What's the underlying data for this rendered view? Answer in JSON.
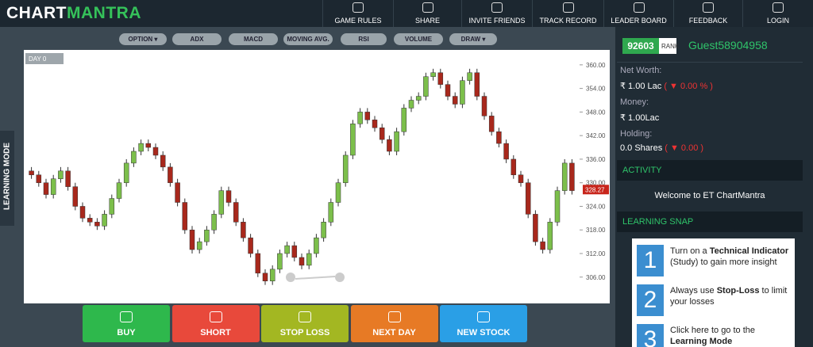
{
  "nav": {
    "logo": [
      "CHART",
      "MANTRA"
    ],
    "items": [
      "GAME RULES",
      "SHARE",
      "INVITE FRIENDS",
      "TRACK RECORD",
      "LEADER BOARD",
      "FEEDBACK",
      "LOGIN"
    ]
  },
  "side_tab": "LEARNING MODE",
  "toolbar": [
    "OPTION",
    "ADX",
    "MACD",
    "MOVING AVG.",
    "RSI",
    "VOLUME",
    "DRAW"
  ],
  "chart": {
    "type": "candlestick",
    "day_label": "DAY 0",
    "last_price": 328.27,
    "up_color": "#7cbf4b",
    "down_color": "#a8281c",
    "ylim": [
      299.3,
      363.8
    ],
    "yticks": [
      {
        "value": 306,
        "label": "306.00"
      },
      {
        "value": 312,
        "label": "312.00"
      },
      {
        "value": 318,
        "label": "318.00"
      },
      {
        "value": 324,
        "label": "324.00"
      },
      {
        "value": 330,
        "label": "330.00"
      },
      {
        "value": 336,
        "label": "336.00"
      },
      {
        "value": 342,
        "label": "342.00"
      },
      {
        "value": 348,
        "label": "348.00"
      },
      {
        "value": 354,
        "label": "354.00"
      },
      {
        "value": 360,
        "label": "360.00"
      }
    ],
    "open": [
      333,
      332,
      330,
      327,
      331,
      333,
      329,
      324,
      321,
      320,
      319,
      322,
      326,
      330,
      335,
      338,
      340,
      339,
      337,
      334,
      330,
      325,
      318,
      313,
      315,
      318,
      322,
      328,
      325,
      320,
      316,
      312,
      307,
      305,
      308,
      312,
      314,
      311,
      309,
      312,
      316,
      320,
      325,
      330,
      337,
      345,
      348,
      346,
      344,
      341,
      338,
      343,
      349,
      351,
      352,
      357,
      358,
      355,
      352,
      350,
      356,
      358,
      352,
      347,
      343,
      340,
      336,
      332,
      330,
      322,
      315,
      313,
      320,
      328,
      335
    ],
    "high": [
      334,
      333,
      331,
      332,
      334,
      334,
      330,
      325,
      322,
      321,
      323,
      327,
      331,
      336,
      339,
      341,
      341,
      340,
      338,
      335,
      331,
      326,
      319,
      316,
      319,
      323,
      329,
      329,
      326,
      321,
      317,
      313,
      308,
      309,
      313,
      315,
      315,
      312,
      313,
      317,
      321,
      326,
      331,
      338,
      346,
      349,
      349,
      347,
      345,
      342,
      344,
      350,
      352,
      353,
      358,
      359,
      359,
      356,
      353,
      357,
      359,
      359,
      353,
      348,
      344,
      341,
      337,
      333,
      331,
      323,
      316,
      321,
      329,
      336,
      336
    ],
    "low": [
      331,
      329,
      326,
      326,
      330,
      328,
      323,
      320,
      319,
      318,
      318,
      321,
      325,
      329,
      334,
      337,
      338,
      336,
      333,
      329,
      324,
      317,
      312,
      312,
      314,
      317,
      321,
      324,
      319,
      315,
      311,
      306,
      304,
      304,
      307,
      311,
      310,
      308,
      308,
      311,
      315,
      319,
      324,
      329,
      336,
      344,
      345,
      343,
      340,
      337,
      337,
      342,
      348,
      350,
      351,
      356,
      354,
      351,
      349,
      349,
      355,
      351,
      346,
      342,
      339,
      335,
      331,
      329,
      321,
      314,
      312,
      312,
      319,
      327,
      327
    ],
    "close": [
      332,
      330,
      327,
      331,
      333,
      329,
      324,
      321,
      320,
      319,
      322,
      326,
      330,
      335,
      338,
      340,
      339,
      337,
      334,
      330,
      325,
      318,
      313,
      315,
      318,
      322,
      328,
      325,
      320,
      316,
      312,
      307,
      305,
      308,
      312,
      314,
      311,
      309,
      312,
      316,
      320,
      325,
      330,
      337,
      345,
      348,
      346,
      344,
      341,
      338,
      343,
      349,
      351,
      352,
      357,
      358,
      355,
      352,
      350,
      356,
      358,
      352,
      347,
      343,
      340,
      336,
      332,
      330,
      322,
      315,
      313,
      320,
      328,
      335,
      328
    ]
  },
  "actions": [
    "BUY",
    "SHORT",
    "STOP LOSS",
    "NEXT DAY",
    "NEW STOCK"
  ],
  "profile": {
    "rank_value": "92603",
    "rank_label": "RANK",
    "username": "Guest58904958",
    "net_worth_label": "Net Worth:",
    "net_worth": "₹ 1.00 Lac",
    "net_worth_change": "( ▼ 0.00 % )",
    "money_label": "Money:",
    "money": "₹ 1.00Lac",
    "holding_label": "Holding:",
    "holding": "0.0 Shares",
    "holding_change": "( ▼ 0.00 )"
  },
  "activity": {
    "title": "ACTIVITY",
    "message": "Welcome to ET ChartMantra"
  },
  "learning_snap": {
    "title": "LEARNING SNAP",
    "items": [
      {
        "number": "1",
        "text": [
          "Turn on a ",
          "Technical Indicator",
          " (Study) to gain more insight"
        ]
      },
      {
        "number": "2",
        "text": [
          "Always use ",
          "Stop-Loss",
          " to limit your losses"
        ]
      },
      {
        "number": "3",
        "text": [
          "Click here to go to the ",
          "Learning Mode"
        ]
      }
    ]
  }
}
